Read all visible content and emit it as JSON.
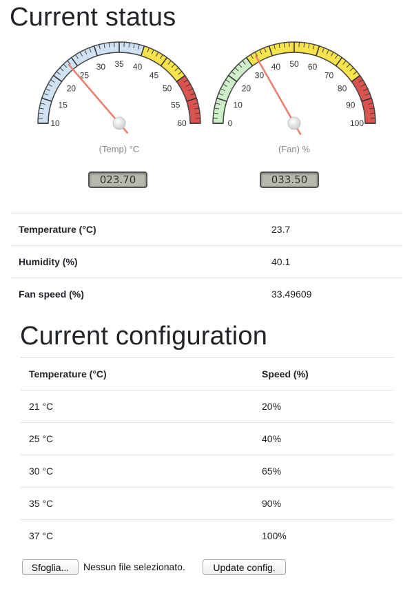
{
  "status": {
    "title": "Current status",
    "gauges": [
      {
        "id": "temp",
        "label": "(Temp) °C",
        "min": 10,
        "max": 60,
        "value": 23.7,
        "ticks": [
          "10",
          "15",
          "20",
          "25",
          "30",
          "35",
          "40",
          "45",
          "50",
          "55",
          "60"
        ],
        "bands": [
          {
            "from": 10,
            "to": 40,
            "color": "#cfe2f3"
          },
          {
            "from": 40,
            "to": 50,
            "color": "#f7e34b"
          },
          {
            "from": 50,
            "to": 60,
            "color": "#d9534f"
          }
        ],
        "lcd": "023.70"
      },
      {
        "id": "fan",
        "label": "(Fan) %",
        "min": 0,
        "max": 100,
        "value": 33.5,
        "ticks": [
          "0",
          "10",
          "20",
          "30",
          "40",
          "50",
          "60",
          "70",
          "80",
          "90",
          "100"
        ],
        "bands": [
          {
            "from": 0,
            "to": 30,
            "color": "#cdeec8"
          },
          {
            "from": 30,
            "to": 80,
            "color": "#f7e34b"
          },
          {
            "from": 80,
            "to": 100,
            "color": "#d9534f"
          }
        ],
        "lcd": "033.50"
      }
    ],
    "rows": [
      {
        "label": "Temperature (°C)",
        "value": "23.7"
      },
      {
        "label": "Humidity (%)",
        "value": "40.1"
      },
      {
        "label": "Fan speed (%)",
        "value": "33.49609"
      }
    ]
  },
  "config": {
    "title": "Current configuration",
    "headers": [
      "Temperature (°C)",
      "Speed (%)"
    ],
    "rows": [
      [
        "21 °C",
        "20%"
      ],
      [
        "25 °C",
        "40%"
      ],
      [
        "30 °C",
        "65%"
      ],
      [
        "35 °C",
        "90%"
      ],
      [
        "37 °C",
        "100%"
      ]
    ]
  },
  "form": {
    "browse_label": "Sfoglia...",
    "file_status": "Nessun file selezionato.",
    "update_label": "Update config."
  },
  "colors": {
    "needle": "#e8816e",
    "tick": "#333333",
    "gauge_outline": "#444444"
  }
}
